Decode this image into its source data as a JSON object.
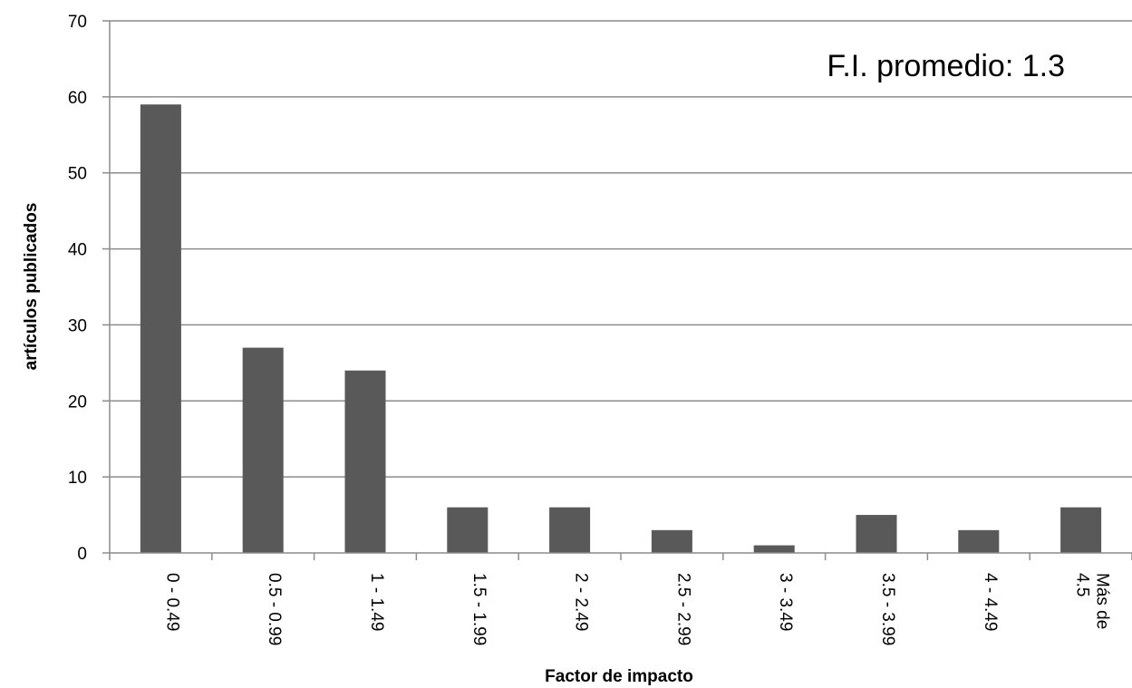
{
  "chart_data": {
    "type": "bar",
    "categories": [
      [
        "0 - 0.49"
      ],
      [
        "0.5 - 0.99"
      ],
      [
        "1 - 1.49"
      ],
      [
        "1.5 - 1.99"
      ],
      [
        "2 - 2.49"
      ],
      [
        "2.5 - 2.99"
      ],
      [
        "3 - 3.49"
      ],
      [
        "3.5 - 3.99"
      ],
      [
        "4 - 4.49"
      ],
      [
        "Más de",
        "4.5"
      ]
    ],
    "values": [
      59,
      27,
      24,
      6,
      6,
      3,
      1,
      5,
      3,
      6
    ],
    "xlabel": "Factor de impacto",
    "ylabel": "artículos publicados",
    "ylim": [
      0,
      70
    ],
    "yticks": [
      0,
      10,
      20,
      30,
      40,
      50,
      60,
      70
    ],
    "annotation": "F.I. promedio:  1.3",
    "grid": true,
    "legend": "none",
    "colors": {
      "bar": "#595959",
      "grid": "#8c8c8c",
      "axis": "#8c8c8c"
    }
  }
}
